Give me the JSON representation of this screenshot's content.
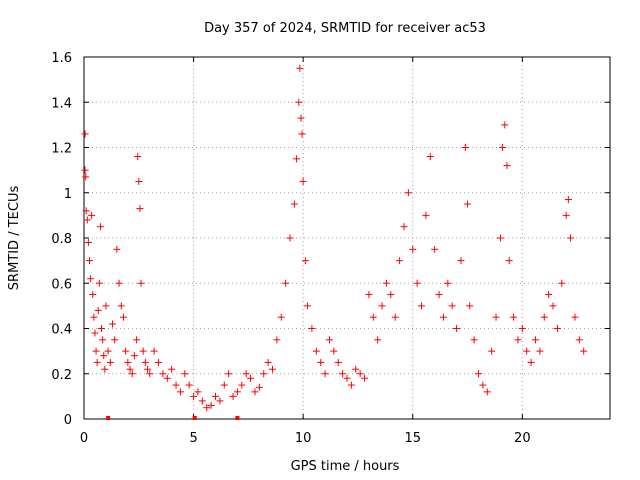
{
  "chart_data": {
    "type": "scatter",
    "title": "Day 357 of 2024, SRMTID for receiver ac53",
    "xlabel": "GPS time / hours",
    "ylabel": "SRMTID / TECUs",
    "xlim": [
      0,
      24
    ],
    "ylim": [
      0,
      1.6
    ],
    "x_ticks": [
      0,
      5,
      10,
      15,
      20
    ],
    "x_tick_labels": [
      "0",
      "5",
      "10",
      "15",
      "20"
    ],
    "y_ticks": [
      0,
      0.2,
      0.4,
      0.6,
      0.8,
      1,
      1.2,
      1.4,
      1.6
    ],
    "y_tick_labels": [
      "0",
      "0.2",
      "0.4",
      "0.6",
      "0.8",
      "1",
      "1.2",
      "1.4",
      "1.6"
    ],
    "grid": true,
    "marker": "plus",
    "series_color": "#ff0000",
    "series": [
      {
        "name": "SRMTID",
        "points": [
          [
            0.05,
            1.26
          ],
          [
            0.05,
            1.1
          ],
          [
            0.08,
            1.07
          ],
          [
            0.1,
            0.92
          ],
          [
            0.15,
            0.88
          ],
          [
            0.2,
            0.78
          ],
          [
            0.25,
            0.7
          ],
          [
            0.3,
            0.62
          ],
          [
            0.35,
            0.9
          ],
          [
            0.4,
            0.55
          ],
          [
            0.45,
            0.45
          ],
          [
            0.5,
            0.38
          ],
          [
            0.55,
            0.3
          ],
          [
            0.6,
            0.25
          ],
          [
            0.65,
            0.48
          ],
          [
            0.7,
            0.6
          ],
          [
            0.75,
            0.85
          ],
          [
            0.8,
            0.4
          ],
          [
            0.85,
            0.35
          ],
          [
            0.9,
            0.28
          ],
          [
            0.95,
            0.22
          ],
          [
            1.0,
            0.5
          ],
          [
            1.1,
            0.3
          ],
          [
            1.2,
            0.25
          ],
          [
            1.3,
            0.42
          ],
          [
            1.4,
            0.35
          ],
          [
            1.5,
            0.75
          ],
          [
            1.6,
            0.6
          ],
          [
            1.7,
            0.5
          ],
          [
            1.8,
            0.45
          ],
          [
            1.9,
            0.3
          ],
          [
            2.0,
            0.25
          ],
          [
            2.1,
            0.22
          ],
          [
            2.2,
            0.2
          ],
          [
            2.3,
            0.28
          ],
          [
            2.4,
            0.35
          ],
          [
            2.45,
            1.16
          ],
          [
            2.5,
            1.05
          ],
          [
            2.55,
            0.93
          ],
          [
            2.6,
            0.6
          ],
          [
            2.7,
            0.3
          ],
          [
            2.8,
            0.25
          ],
          [
            2.9,
            0.22
          ],
          [
            3.0,
            0.2
          ],
          [
            3.2,
            0.3
          ],
          [
            3.4,
            0.25
          ],
          [
            3.6,
            0.2
          ],
          [
            3.8,
            0.18
          ],
          [
            4.0,
            0.22
          ],
          [
            4.2,
            0.15
          ],
          [
            4.4,
            0.12
          ],
          [
            4.6,
            0.2
          ],
          [
            4.8,
            0.15
          ],
          [
            5.0,
            0.1
          ],
          [
            5.2,
            0.12
          ],
          [
            5.4,
            0.08
          ],
          [
            5.6,
            0.05
          ],
          [
            5.8,
            0.06
          ],
          [
            6.0,
            0.1
          ],
          [
            6.2,
            0.08
          ],
          [
            6.4,
            0.15
          ],
          [
            6.6,
            0.2
          ],
          [
            6.8,
            0.1
          ],
          [
            7.0,
            0.12
          ],
          [
            7.2,
            0.15
          ],
          [
            7.4,
            0.2
          ],
          [
            7.6,
            0.18
          ],
          [
            7.8,
            0.12
          ],
          [
            8.0,
            0.14
          ],
          [
            8.2,
            0.2
          ],
          [
            8.4,
            0.25
          ],
          [
            8.6,
            0.22
          ],
          [
            8.8,
            0.35
          ],
          [
            9.0,
            0.45
          ],
          [
            9.2,
            0.6
          ],
          [
            9.4,
            0.8
          ],
          [
            9.6,
            0.95
          ],
          [
            9.7,
            1.15
          ],
          [
            9.8,
            1.4
          ],
          [
            9.85,
            1.55
          ],
          [
            9.9,
            1.33
          ],
          [
            9.95,
            1.26
          ],
          [
            10.0,
            1.05
          ],
          [
            10.1,
            0.7
          ],
          [
            10.2,
            0.5
          ],
          [
            10.4,
            0.4
          ],
          [
            10.6,
            0.3
          ],
          [
            10.8,
            0.25
          ],
          [
            11.0,
            0.2
          ],
          [
            11.2,
            0.35
          ],
          [
            11.4,
            0.3
          ],
          [
            11.6,
            0.25
          ],
          [
            11.8,
            0.2
          ],
          [
            12.0,
            0.18
          ],
          [
            12.2,
            0.15
          ],
          [
            12.4,
            0.22
          ],
          [
            12.6,
            0.2
          ],
          [
            12.8,
            0.18
          ],
          [
            13.0,
            0.55
          ],
          [
            13.2,
            0.45
          ],
          [
            13.4,
            0.35
          ],
          [
            13.6,
            0.5
          ],
          [
            13.8,
            0.6
          ],
          [
            14.0,
            0.55
          ],
          [
            14.2,
            0.45
          ],
          [
            14.4,
            0.7
          ],
          [
            14.6,
            0.85
          ],
          [
            14.8,
            1.0
          ],
          [
            15.0,
            0.75
          ],
          [
            15.2,
            0.6
          ],
          [
            15.4,
            0.5
          ],
          [
            15.6,
            0.9
          ],
          [
            15.8,
            1.16
          ],
          [
            16.0,
            0.75
          ],
          [
            16.2,
            0.55
          ],
          [
            16.4,
            0.45
          ],
          [
            16.6,
            0.6
          ],
          [
            16.8,
            0.5
          ],
          [
            17.0,
            0.4
          ],
          [
            17.2,
            0.7
          ],
          [
            17.4,
            1.2
          ],
          [
            17.5,
            0.95
          ],
          [
            17.6,
            0.5
          ],
          [
            17.8,
            0.35
          ],
          [
            18.0,
            0.2
          ],
          [
            18.2,
            0.15
          ],
          [
            18.4,
            0.12
          ],
          [
            18.6,
            0.3
          ],
          [
            18.8,
            0.45
          ],
          [
            19.0,
            0.8
          ],
          [
            19.1,
            1.2
          ],
          [
            19.2,
            1.3
          ],
          [
            19.3,
            1.12
          ],
          [
            19.4,
            0.7
          ],
          [
            19.6,
            0.45
          ],
          [
            19.8,
            0.35
          ],
          [
            20.0,
            0.4
          ],
          [
            20.2,
            0.3
          ],
          [
            20.4,
            0.25
          ],
          [
            20.6,
            0.35
          ],
          [
            20.8,
            0.3
          ],
          [
            21.0,
            0.45
          ],
          [
            21.2,
            0.55
          ],
          [
            21.4,
            0.5
          ],
          [
            21.6,
            0.4
          ],
          [
            21.8,
            0.6
          ],
          [
            22.0,
            0.9
          ],
          [
            22.1,
            0.97
          ],
          [
            22.2,
            0.8
          ],
          [
            22.4,
            0.45
          ],
          [
            22.6,
            0.35
          ],
          [
            22.8,
            0.3
          ]
        ]
      }
    ],
    "axis_markers_x": [
      1.1,
      5.05,
      7.0
    ]
  }
}
